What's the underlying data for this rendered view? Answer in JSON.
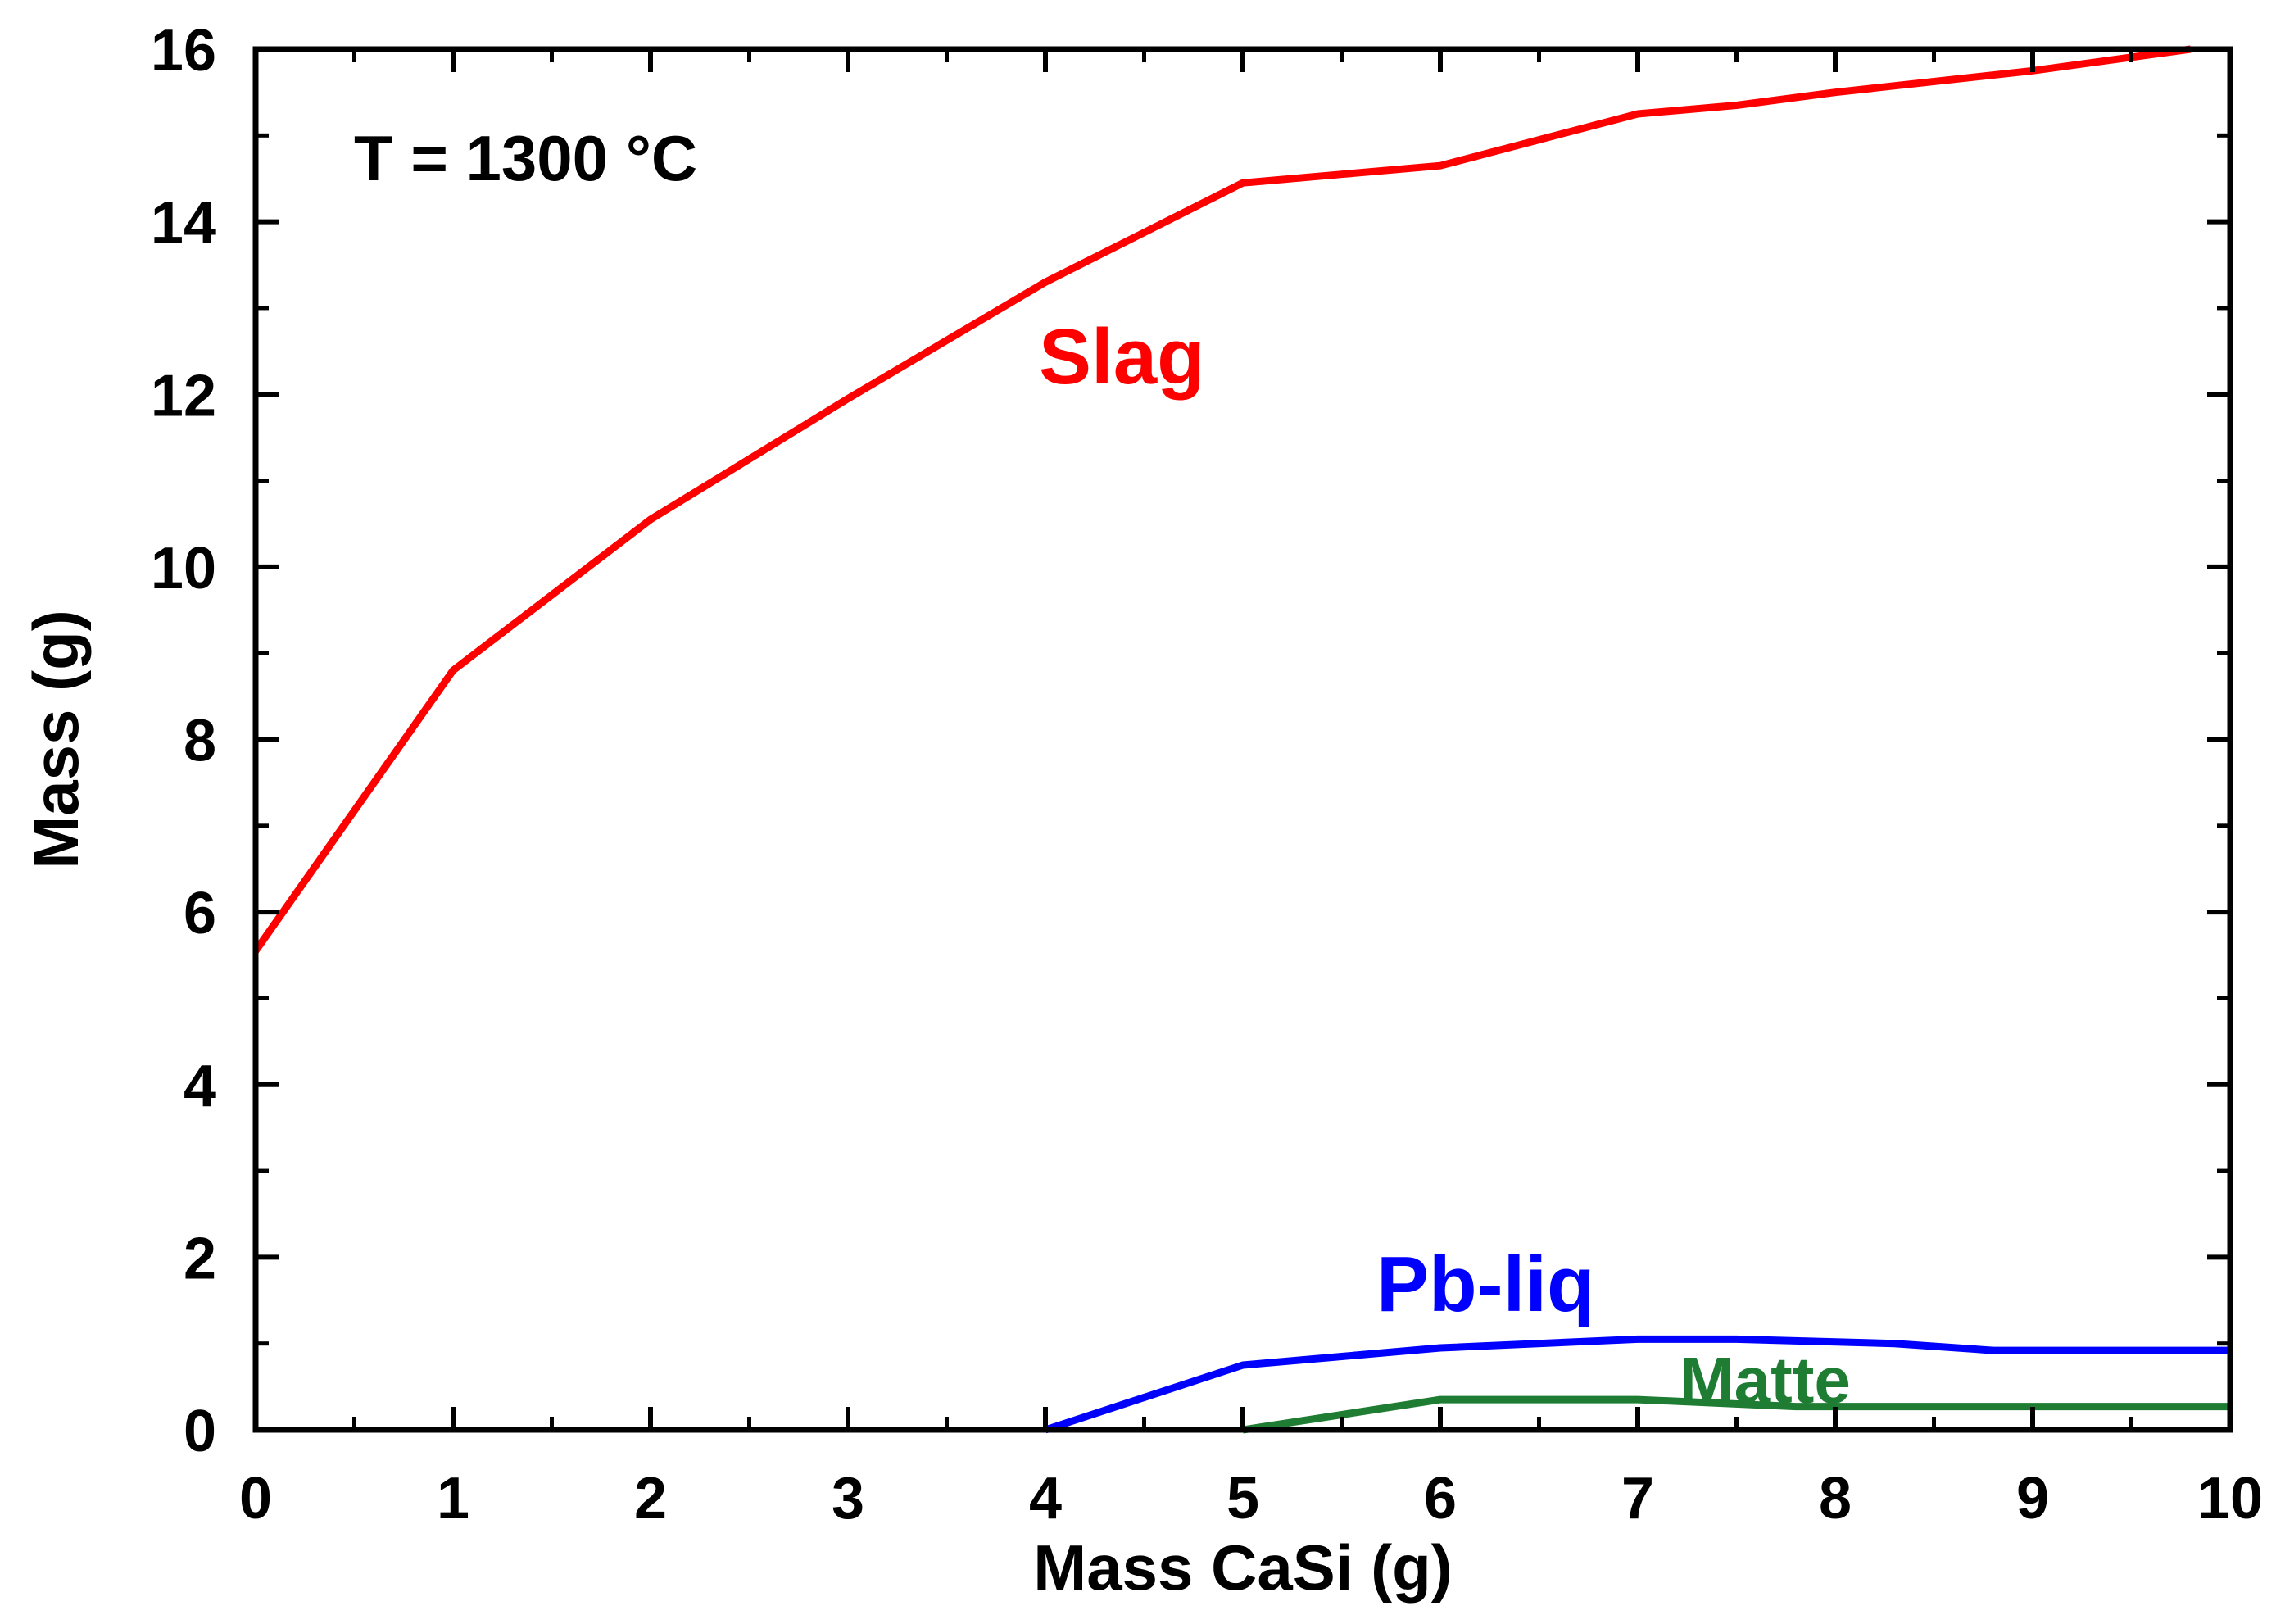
{
  "chart_data": {
    "type": "line",
    "title": "",
    "annotation": "T = 1300 °C",
    "xlabel": "Mass CaSi (g)",
    "ylabel": "Mass (g)",
    "xlim": [
      0,
      10
    ],
    "ylim": [
      0,
      16
    ],
    "x_ticks": [
      "0",
      "1",
      "2",
      "3",
      "4",
      "5",
      "6",
      "7",
      "8",
      "9",
      "10"
    ],
    "y_ticks": [
      "0",
      "2",
      "4",
      "6",
      "8",
      "10",
      "12",
      "14",
      "16"
    ],
    "grid": false,
    "legend": "none (inline series labels)",
    "series": [
      {
        "name": "Slag",
        "color": "#ff0000",
        "x": [
          0,
          1,
          2,
          3,
          4,
          5,
          5.5,
          6,
          7,
          7.5,
          8,
          9,
          9.8
        ],
        "y": [
          5.55,
          8.8,
          10.55,
          11.95,
          13.3,
          14.45,
          14.55,
          14.65,
          15.25,
          15.35,
          15.5,
          15.75,
          16.0
        ]
      },
      {
        "name": "Pb-liq",
        "color": "#0000ff",
        "x": [
          4,
          5,
          5.5,
          6,
          7,
          7.5,
          8.3,
          8.8,
          10
        ],
        "y": [
          0,
          0.75,
          0.85,
          0.95,
          1.05,
          1.05,
          1.0,
          0.92,
          0.92
        ]
      },
      {
        "name": "Matte",
        "color": "#1e7d32",
        "x": [
          5,
          6,
          7,
          7.8,
          10
        ],
        "y": [
          0,
          0.35,
          0.35,
          0.27,
          0.27
        ]
      }
    ]
  }
}
